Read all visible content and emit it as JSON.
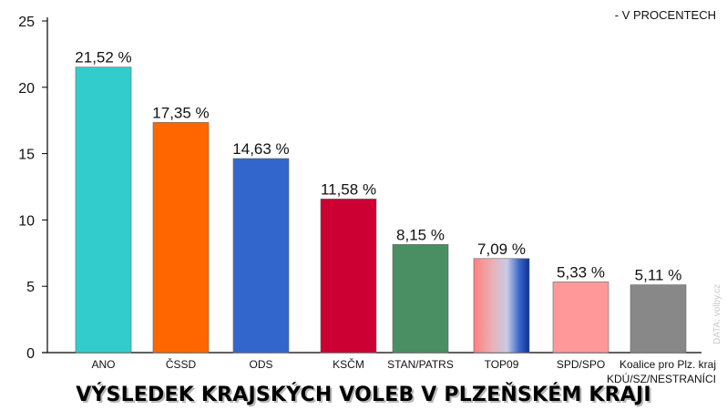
{
  "chart_data": {
    "type": "bar",
    "title": "VÝSLEDEK KRAJSKÝCH VOLEB V PLZEŇSKÉM KRAJI",
    "unit_note": "- V PROCENTECH",
    "source": "DATA: volby.cz",
    "ylim": [
      0,
      25
    ],
    "yticks": [
      0,
      5,
      10,
      15,
      20,
      25
    ],
    "grid": false,
    "categories": [
      "ANO",
      "ČSSD",
      "ODS",
      "KSČM",
      "STAN/PATRS",
      "TOP09",
      "SPD/SPO",
      "Koalice pro Plz. kraj KDÚ/SZ/NESTRANÍCI"
    ],
    "category_lines": [
      [
        "ANO"
      ],
      [
        "ČSSD"
      ],
      [
        "ODS"
      ],
      [
        "KSČM"
      ],
      [
        "STAN/PATRS"
      ],
      [
        "TOP09"
      ],
      [
        "SPD/SPO"
      ],
      [
        "Koalice pro Plz. kraj",
        "KDÚ/SZ/NESTRANÍCI"
      ]
    ],
    "values": [
      21.52,
      17.35,
      14.63,
      11.58,
      8.15,
      7.09,
      5.33,
      5.11
    ],
    "value_labels": [
      "21,52 %",
      "17,35 %",
      "14,63 %",
      "11,58 %",
      "8,15 %",
      "7,09 %",
      "5,33 %",
      "5,11 %"
    ],
    "colors": [
      "#33cccc",
      "#ff6600",
      "#3366cc",
      "#cc0033",
      "#4a8f63",
      "gradient",
      "#ff9999",
      "#888888"
    ]
  }
}
